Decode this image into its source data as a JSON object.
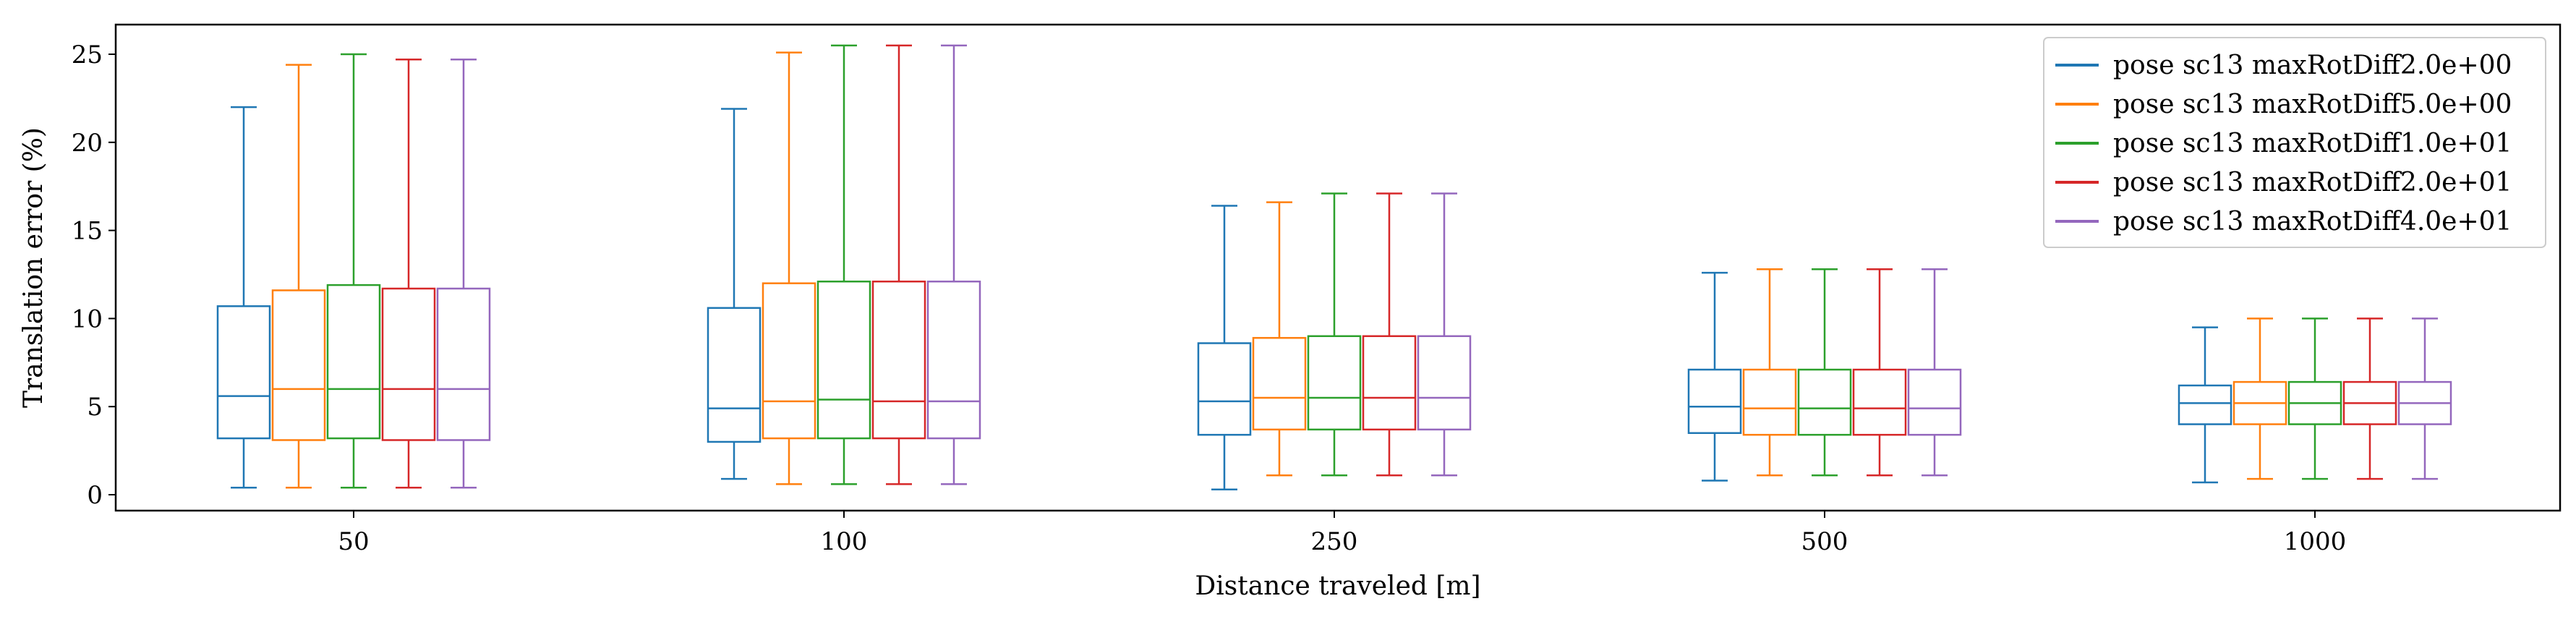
{
  "chart_data": {
    "type": "boxplot",
    "title": "",
    "xlabel": "Distance traveled [m]",
    "ylabel": "Translation error (%)",
    "ylim": [
      -1,
      27
    ],
    "yticks": [
      0,
      5,
      10,
      15,
      20,
      25
    ],
    "categories": [
      "50",
      "100",
      "250",
      "500",
      "1000"
    ],
    "legend_position": "top-right",
    "grid": false,
    "series": [
      {
        "name": "pose sc13 maxRotDiff2.0e+00",
        "color": "#1f77b4",
        "boxes": [
          {
            "whislo": 0.4,
            "q1": 3.2,
            "med": 5.6,
            "q3": 10.7,
            "whishi": 22.0
          },
          {
            "whislo": 0.9,
            "q1": 3.0,
            "med": 4.9,
            "q3": 10.6,
            "whishi": 21.9
          },
          {
            "whislo": 0.3,
            "q1": 3.4,
            "med": 5.3,
            "q3": 8.6,
            "whishi": 16.4
          },
          {
            "whislo": 0.8,
            "q1": 3.5,
            "med": 5.0,
            "q3": 7.1,
            "whishi": 12.6
          },
          {
            "whislo": 0.7,
            "q1": 4.0,
            "med": 5.2,
            "q3": 6.2,
            "whishi": 9.5
          }
        ]
      },
      {
        "name": "pose sc13 maxRotDiff5.0e+00",
        "color": "#ff7f0e",
        "boxes": [
          {
            "whislo": 0.4,
            "q1": 3.1,
            "med": 6.0,
            "q3": 11.6,
            "whishi": 24.4
          },
          {
            "whislo": 0.6,
            "q1": 3.2,
            "med": 5.3,
            "q3": 12.0,
            "whishi": 25.1
          },
          {
            "whislo": 1.1,
            "q1": 3.7,
            "med": 5.5,
            "q3": 8.9,
            "whishi": 16.6
          },
          {
            "whislo": 1.1,
            "q1": 3.4,
            "med": 4.9,
            "q3": 7.1,
            "whishi": 12.8
          },
          {
            "whislo": 0.9,
            "q1": 4.0,
            "med": 5.2,
            "q3": 6.4,
            "whishi": 10.0
          }
        ]
      },
      {
        "name": "pose sc13 maxRotDiff1.0e+01",
        "color": "#2ca02c",
        "boxes": [
          {
            "whislo": 0.4,
            "q1": 3.2,
            "med": 6.0,
            "q3": 11.9,
            "whishi": 25.0
          },
          {
            "whislo": 0.6,
            "q1": 3.2,
            "med": 5.4,
            "q3": 12.1,
            "whishi": 25.5
          },
          {
            "whislo": 1.1,
            "q1": 3.7,
            "med": 5.5,
            "q3": 9.0,
            "whishi": 17.1
          },
          {
            "whislo": 1.1,
            "q1": 3.4,
            "med": 4.9,
            "q3": 7.1,
            "whishi": 12.8
          },
          {
            "whislo": 0.9,
            "q1": 4.0,
            "med": 5.2,
            "q3": 6.4,
            "whishi": 10.0
          }
        ]
      },
      {
        "name": "pose sc13 maxRotDiff2.0e+01",
        "color": "#d62728",
        "boxes": [
          {
            "whislo": 0.4,
            "q1": 3.1,
            "med": 6.0,
            "q3": 11.7,
            "whishi": 24.7
          },
          {
            "whislo": 0.6,
            "q1": 3.2,
            "med": 5.3,
            "q3": 12.1,
            "whishi": 25.5
          },
          {
            "whislo": 1.1,
            "q1": 3.7,
            "med": 5.5,
            "q3": 9.0,
            "whishi": 17.1
          },
          {
            "whislo": 1.1,
            "q1": 3.4,
            "med": 4.9,
            "q3": 7.1,
            "whishi": 12.8
          },
          {
            "whislo": 0.9,
            "q1": 4.0,
            "med": 5.2,
            "q3": 6.4,
            "whishi": 10.0
          }
        ]
      },
      {
        "name": "pose sc13 maxRotDiff4.0e+01",
        "color": "#9467bd",
        "boxes": [
          {
            "whislo": 0.4,
            "q1": 3.1,
            "med": 6.0,
            "q3": 11.7,
            "whishi": 24.7
          },
          {
            "whislo": 0.6,
            "q1": 3.2,
            "med": 5.3,
            "q3": 12.1,
            "whishi": 25.5
          },
          {
            "whislo": 1.1,
            "q1": 3.7,
            "med": 5.5,
            "q3": 9.0,
            "whishi": 17.1
          },
          {
            "whislo": 1.1,
            "q1": 3.4,
            "med": 4.9,
            "q3": 7.1,
            "whishi": 12.8
          },
          {
            "whislo": 0.9,
            "q1": 4.0,
            "med": 5.2,
            "q3": 6.4,
            "whishi": 10.0
          }
        ]
      }
    ]
  }
}
